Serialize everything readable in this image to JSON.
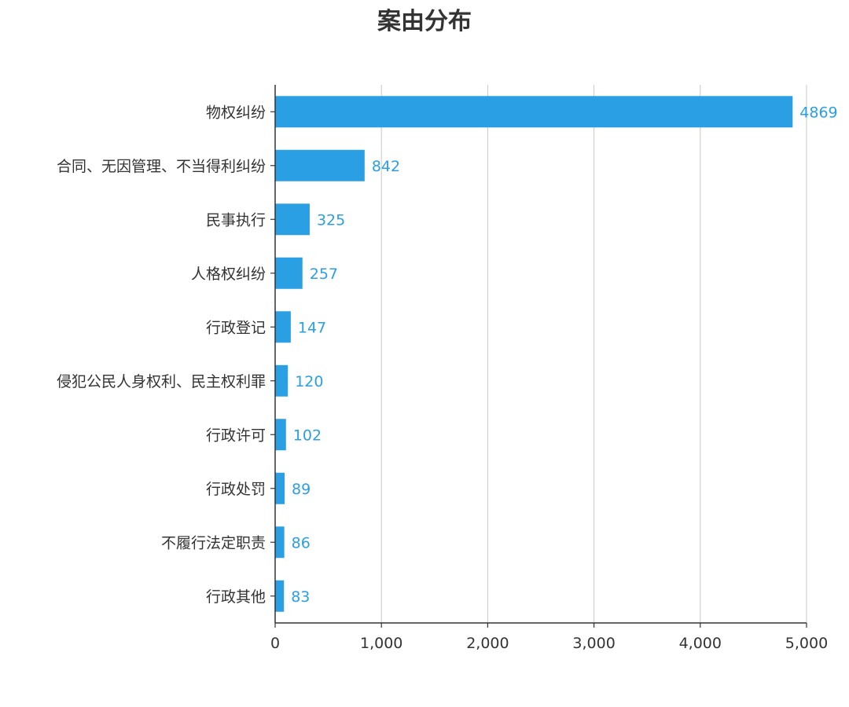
{
  "chart_data": {
    "type": "bar",
    "orientation": "horizontal",
    "title": "案由分布",
    "categories": [
      "物权纠纷",
      "合同、无因管理、不当得利纠纷",
      "民事执行",
      "人格权纠纷",
      "行政登记",
      "侵犯公民人身权利、民主权利罪",
      "行政许可",
      "行政处罚",
      "不履行法定职责",
      "行政其他"
    ],
    "values": [
      4869,
      842,
      325,
      257,
      147,
      120,
      102,
      89,
      86,
      83
    ],
    "data_labels": [
      "4869",
      "842",
      "325",
      "257",
      "147",
      "120",
      "102",
      "89",
      "86",
      "83"
    ],
    "xlim": [
      0,
      5000
    ],
    "x_ticks": [
      0,
      1000,
      2000,
      3000,
      4000,
      5000
    ],
    "x_tick_labels": [
      "0",
      "1,000",
      "2,000",
      "3,000",
      "4,000",
      "5,000"
    ],
    "grid": "vertical",
    "legend": "none",
    "colors": {
      "bar": "#2b9fe4",
      "data_label": "#2b9fe4",
      "grid": "#c8c8c8",
      "axis": "#333333",
      "text": "#333333"
    }
  }
}
